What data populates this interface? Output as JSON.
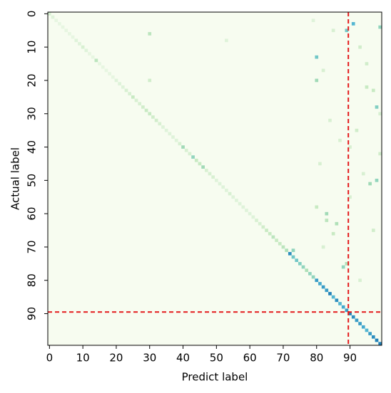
{
  "chart_data": {
    "type": "matrix",
    "xlabel": "Predict label",
    "ylabel": "Actual label",
    "xlim": [
      -0.5,
      99.5
    ],
    "ylim": [
      -0.5,
      99.5
    ],
    "y_inverted": true,
    "xticks": [
      0,
      10,
      20,
      30,
      40,
      50,
      60,
      70,
      80,
      90
    ],
    "yticks": [
      0,
      10,
      20,
      30,
      40,
      50,
      60,
      70,
      80,
      90
    ],
    "clim": [
      0,
      1
    ],
    "colormap": [
      "#f7fcf0",
      "#e0f3db",
      "#ccebc5",
      "#a8ddb5",
      "#7bccc4",
      "#4eb3d3",
      "#2b8cbe",
      "#0868ac"
    ],
    "diagonal": [
      0.2,
      0.15,
      0.1,
      0.1,
      0.1,
      0.1,
      0.1,
      0.1,
      0.15,
      0.15,
      0.2,
      0.15,
      0.1,
      0.1,
      0.35,
      0.1,
      0.1,
      0.1,
      0.1,
      0.1,
      0.15,
      0.15,
      0.15,
      0.2,
      0.2,
      0.3,
      0.2,
      0.2,
      0.25,
      0.3,
      0.3,
      0.25,
      0.25,
      0.2,
      0.15,
      0.15,
      0.15,
      0.15,
      0.15,
      0.2,
      0.45,
      0.2,
      0.2,
      0.5,
      0.3,
      0.3,
      0.45,
      0.2,
      0.2,
      0.2,
      0.15,
      0.15,
      0.15,
      0.15,
      0.2,
      0.15,
      0.15,
      0.15,
      0.15,
      0.15,
      0.15,
      0.15,
      0.2,
      0.2,
      0.25,
      0.3,
      0.3,
      0.35,
      0.3,
      0.3,
      0.35,
      0.4,
      0.85,
      0.6,
      0.6,
      0.55,
      0.5,
      0.4,
      0.5,
      0.5,
      0.8,
      0.75,
      0.8,
      0.8,
      0.9,
      0.7,
      0.85,
      0.7,
      0.75,
      0.8,
      0.9,
      0.85,
      0.8,
      0.8,
      0.75,
      0.7,
      0.8,
      0.85,
      0.9,
      0.9
    ],
    "cells": [
      {
        "row": 3,
        "col": 91,
        "value": 0.7
      },
      {
        "row": 4,
        "col": 99,
        "value": 0.5
      },
      {
        "row": 5,
        "col": 89,
        "value": 0.6
      },
      {
        "row": 6,
        "col": 30,
        "value": 0.35
      },
      {
        "row": 13,
        "col": 80,
        "value": 0.6
      },
      {
        "row": 20,
        "col": 80,
        "value": 0.45
      },
      {
        "row": 28,
        "col": 98,
        "value": 0.55
      },
      {
        "row": 50,
        "col": 98,
        "value": 0.5
      },
      {
        "row": 51,
        "col": 96,
        "value": 0.45
      },
      {
        "row": 58,
        "col": 80,
        "value": 0.3
      },
      {
        "row": 60,
        "col": 83,
        "value": 0.45
      },
      {
        "row": 62,
        "col": 83,
        "value": 0.35
      },
      {
        "row": 63,
        "col": 86,
        "value": 0.4
      },
      {
        "row": 66,
        "col": 85,
        "value": 0.3
      },
      {
        "row": 71,
        "col": 73,
        "value": 0.5
      },
      {
        "row": 75,
        "col": 89,
        "value": 0.4
      },
      {
        "row": 76,
        "col": 88,
        "value": 0.5
      },
      {
        "row": 20,
        "col": 30,
        "value": 0.25
      },
      {
        "row": 5,
        "col": 85,
        "value": 0.2
      },
      {
        "row": 10,
        "col": 93,
        "value": 0.25
      },
      {
        "row": 15,
        "col": 95,
        "value": 0.25
      },
      {
        "row": 17,
        "col": 82,
        "value": 0.2
      },
      {
        "row": 23,
        "col": 97,
        "value": 0.3
      },
      {
        "row": 32,
        "col": 84,
        "value": 0.2
      },
      {
        "row": 35,
        "col": 92,
        "value": 0.25
      },
      {
        "row": 38,
        "col": 87,
        "value": 0.2
      },
      {
        "row": 42,
        "col": 99,
        "value": 0.25
      },
      {
        "row": 45,
        "col": 81,
        "value": 0.2
      },
      {
        "row": 48,
        "col": 94,
        "value": 0.2
      },
      {
        "row": 55,
        "col": 90,
        "value": 0.2
      },
      {
        "row": 65,
        "col": 97,
        "value": 0.25
      },
      {
        "row": 70,
        "col": 82,
        "value": 0.2
      },
      {
        "row": 80,
        "col": 93,
        "value": 0.2
      },
      {
        "row": 2,
        "col": 79,
        "value": 0.15
      },
      {
        "row": 8,
        "col": 53,
        "value": 0.15
      },
      {
        "row": 22,
        "col": 95,
        "value": 0.3
      },
      {
        "row": 30,
        "col": 99,
        "value": 0.2
      },
      {
        "row": 40,
        "col": 90,
        "value": 0.2
      }
    ],
    "guide_lines": {
      "x": 89.5,
      "y": 89.5,
      "color": "#e41a1c"
    }
  }
}
